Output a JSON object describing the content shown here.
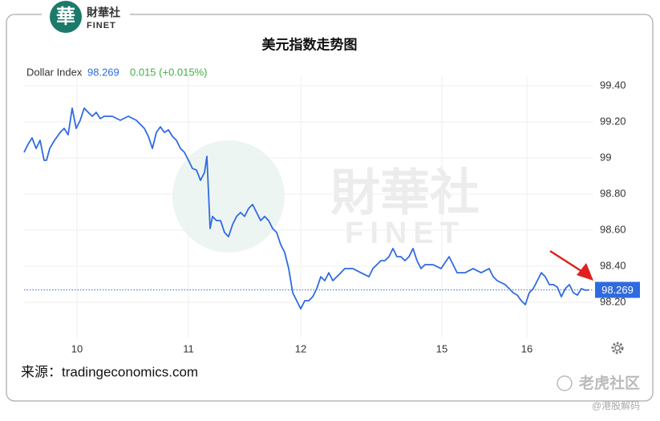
{
  "logo": {
    "mark": "華",
    "name": "財華社",
    "sub": "FINET"
  },
  "watermark": {
    "name": "財華社",
    "sub": "FINET"
  },
  "footer": {
    "source": "来源：tradingeconomics.com",
    "brand": "老虎社区",
    "handle": "@港股解码"
  },
  "chart_data": {
    "type": "line",
    "title": "美元指数走势图",
    "label": "Dollar Index",
    "last_value": 98.269,
    "change": "0.015 (+0.015%)",
    "color": "#2f6be0",
    "grid": true,
    "x": [
      30,
      35,
      40,
      45,
      50,
      55,
      58,
      62,
      68,
      75,
      80,
      85,
      90,
      95,
      100,
      105,
      110,
      115,
      120,
      125,
      130,
      140,
      150,
      160,
      170,
      180,
      185,
      190,
      195,
      200,
      205,
      210,
      215,
      220,
      225,
      230,
      235,
      240,
      245,
      250,
      255,
      258,
      260,
      262,
      265,
      270,
      275,
      280,
      285,
      290,
      295,
      300,
      305,
      310,
      315,
      320,
      325,
      330,
      335,
      340,
      345,
      350,
      355,
      360,
      365,
      370,
      375,
      380,
      385,
      390,
      395,
      400,
      405,
      410,
      415,
      420,
      425,
      430,
      440,
      450,
      460,
      465,
      470,
      475,
      480,
      485,
      490,
      495,
      500,
      505,
      510,
      515,
      520,
      525,
      530,
      540,
      550,
      560,
      565,
      570,
      580,
      590,
      600,
      610,
      615,
      620,
      630,
      640,
      645,
      650,
      655,
      660,
      665,
      670,
      675,
      680,
      685,
      690,
      695,
      700,
      705,
      710,
      715,
      720,
      725,
      730,
      735
    ],
    "values": [
      99.031,
      99.076,
      99.111,
      99.053,
      99.098,
      98.987,
      98.987,
      99.053,
      99.098,
      99.142,
      99.164,
      99.129,
      99.276,
      99.164,
      99.209,
      99.276,
      99.253,
      99.231,
      99.253,
      99.218,
      99.231,
      99.231,
      99.209,
      99.231,
      99.209,
      99.164,
      99.12,
      99.053,
      99.142,
      99.173,
      99.142,
      99.156,
      99.12,
      99.098,
      99.053,
      99.031,
      98.987,
      98.942,
      98.933,
      98.876,
      98.92,
      99.009,
      98.809,
      98.609,
      98.676,
      98.653,
      98.653,
      98.587,
      98.564,
      98.631,
      98.676,
      98.698,
      98.676,
      98.72,
      98.742,
      98.698,
      98.653,
      98.676,
      98.653,
      98.609,
      98.587,
      98.52,
      98.476,
      98.387,
      98.253,
      98.209,
      98.164,
      98.209,
      98.209,
      98.231,
      98.276,
      98.342,
      98.32,
      98.364,
      98.32,
      98.342,
      98.364,
      98.387,
      98.387,
      98.364,
      98.342,
      98.387,
      98.409,
      98.431,
      98.431,
      98.453,
      98.498,
      98.453,
      98.453,
      98.431,
      98.453,
      98.498,
      98.431,
      98.387,
      98.409,
      98.409,
      98.387,
      98.453,
      98.409,
      98.364,
      98.364,
      98.387,
      98.364,
      98.387,
      98.342,
      98.32,
      98.298,
      98.253,
      98.24,
      98.209,
      98.187,
      98.253,
      98.276,
      98.32,
      98.364,
      98.342,
      98.298,
      98.298,
      98.284,
      98.231,
      98.276,
      98.298,
      98.253,
      98.24,
      98.276,
      98.267,
      98.269
    ],
    "xlim": [
      30,
      740
    ],
    "xticks": [
      {
        "value": 96,
        "label": "10"
      },
      {
        "value": 235,
        "label": "11"
      },
      {
        "value": 375,
        "label": "12"
      },
      {
        "value": 551,
        "label": "15"
      },
      {
        "value": 657,
        "label": "16"
      }
    ],
    "ylim": [
      98.0,
      99.45
    ],
    "yticks": [
      {
        "value": 99.4,
        "label": "99.40"
      },
      {
        "value": 99.2,
        "label": "99.20"
      },
      99,
      {
        "value": 98.8,
        "label": "98.80"
      },
      {
        "value": 98.6,
        "label": "98.60"
      },
      {
        "value": 98.4,
        "label": "98.40"
      },
      {
        "value": 98.2,
        "label": "98.20"
      }
    ]
  }
}
